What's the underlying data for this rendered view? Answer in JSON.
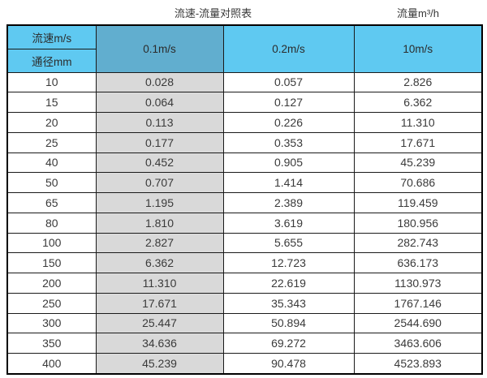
{
  "titles": {
    "main": "流速-流量对照表",
    "unit": "流量m³/h"
  },
  "colors": {
    "header_light_blue": "#5fc9f1",
    "header_dark_blue": "#61aecf",
    "gray_column": "#d9d9d9",
    "border": "#1a1a1a",
    "text": "#3a3a3a"
  },
  "table": {
    "corner_top_label": "流速m/s",
    "corner_bottom_label": "通径mm",
    "columns": [
      "0.1m/s",
      "0.2m/s",
      "10m/s"
    ],
    "rows": [
      [
        "10",
        "0.028",
        "0.057",
        "2.826"
      ],
      [
        "15",
        "0.064",
        "0.127",
        "6.362"
      ],
      [
        "20",
        "0.113",
        "0.226",
        "11.310"
      ],
      [
        "25",
        "0.177",
        "0.353",
        "17.671"
      ],
      [
        "40",
        "0.452",
        "0.905",
        "45.239"
      ],
      [
        "50",
        "0.707",
        "1.414",
        "70.686"
      ],
      [
        "65",
        "1.195",
        "2.389",
        "119.459"
      ],
      [
        "80",
        "1.810",
        "3.619",
        "180.956"
      ],
      [
        "100",
        "2.827",
        "5.655",
        "282.743"
      ],
      [
        "150",
        "6.362",
        "12.723",
        "636.173"
      ],
      [
        "200",
        "11.310",
        "22.619",
        "1130.973"
      ],
      [
        "250",
        "17.671",
        "35.343",
        "1767.146"
      ],
      [
        "300",
        "25.447",
        "50.894",
        "2544.690"
      ],
      [
        "350",
        "34.636",
        "69.272",
        "3463.606"
      ],
      [
        "400",
        "45.239",
        "90.478",
        "4523.893"
      ]
    ]
  }
}
